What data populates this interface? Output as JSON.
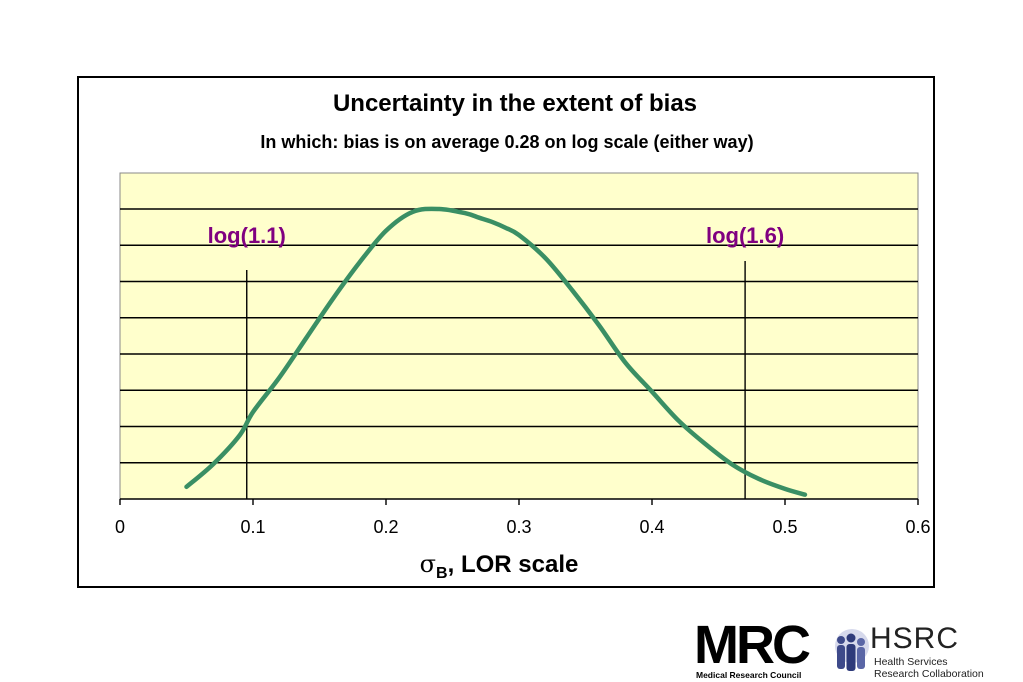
{
  "chart_data": {
    "type": "line",
    "title": "Uncertainty in the extent of bias",
    "subtitle": "In which:  bias is on average 0.28 on log scale (either way)",
    "xlabel_symbol": "σ",
    "xlabel_subscript": "B",
    "xlabel_rest": ", LOR scale",
    "xlim": [
      0,
      0.6
    ],
    "x_ticks": [
      "0",
      "0.1",
      "0.2",
      "0.3",
      "0.4",
      "0.5",
      "0.6"
    ],
    "y_gridlines": 8,
    "grid": true,
    "series": [
      {
        "color": "#3a8f64",
        "x": [
          0.05,
          0.07,
          0.09,
          0.1,
          0.12,
          0.14,
          0.16,
          0.18,
          0.2,
          0.22,
          0.24,
          0.26,
          0.27,
          0.28,
          0.29,
          0.3,
          0.32,
          0.34,
          0.36,
          0.38,
          0.4,
          0.42,
          0.44,
          0.46,
          0.48,
          0.5,
          0.515
        ],
        "y": [
          0.042,
          0.12,
          0.22,
          0.3,
          0.42,
          0.555,
          0.69,
          0.815,
          0.925,
          0.99,
          1.0,
          0.985,
          0.97,
          0.955,
          0.935,
          0.91,
          0.83,
          0.72,
          0.6,
          0.47,
          0.37,
          0.27,
          0.19,
          0.12,
          0.07,
          0.035,
          0.015
        ]
      }
    ],
    "annotations": [
      {
        "label": "log(1.1)",
        "x": 0.0953
      },
      {
        "label": "log(1.6)",
        "x": 0.47
      }
    ],
    "colors": {
      "plot_bg": "#ffffcc",
      "curve": "#3a8f64",
      "annotation": "#800080"
    }
  },
  "logos": {
    "mrc": "MRC",
    "mrc_sub": "Medical Research Council",
    "hsrc": "HSRC",
    "hsrc_sub1": "Health Services",
    "hsrc_sub2": "Research Collaboration"
  }
}
